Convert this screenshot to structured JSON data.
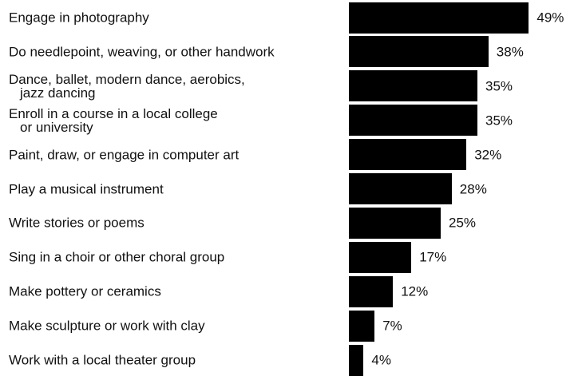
{
  "chart_data": {
    "type": "bar",
    "orientation": "horizontal",
    "categories": [
      "Engage in photography",
      "Do needlepoint, weaving, or other handwork",
      "Dance, ballet, modern dance, aerobics,\njazz dancing",
      "Enroll in a course in a local college\nor university",
      "Paint, draw, or engage in computer art",
      "Play a musical instrument",
      "Write stories or poems",
      "Sing in a choir or other choral group",
      "Make pottery or ceramics",
      "Make sculpture or work with clay",
      "Work with a local theater group"
    ],
    "values": [
      49,
      38,
      35,
      35,
      32,
      28,
      25,
      17,
      12,
      7,
      4
    ],
    "value_labels": [
      "49%",
      "38%",
      "35%",
      "35%",
      "32%",
      "28%",
      "25%",
      "17%",
      "12%",
      "7%",
      "4%"
    ],
    "color": "#000000"
  }
}
